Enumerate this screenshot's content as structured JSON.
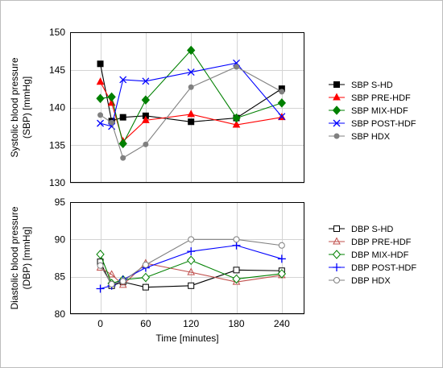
{
  "chart_data": [
    {
      "type": "line",
      "x": [
        0,
        15,
        30,
        60,
        120,
        180,
        240
      ],
      "xlim": [
        -40,
        270
      ],
      "xticks": [
        0,
        60,
        120,
        180,
        240
      ],
      "ylim": [
        130,
        150
      ],
      "yticks": [
        130,
        135,
        140,
        145,
        150
      ],
      "ylabel": "Systolic blood pressure (SBP) [mmHg]",
      "ylabel_lines": [
        "Systolic blood pressure",
        "(SBP) [mmHg]"
      ],
      "grid": true,
      "legend": "right",
      "series": [
        {
          "name": "SBP S-HD",
          "color": "#000000",
          "marker": "filled-square",
          "values": [
            145.8,
            138.2,
            138.7,
            138.9,
            138.1,
            138.6,
            142.5
          ]
        },
        {
          "name": "SBP PRE-HDF",
          "color": "#ff0000",
          "marker": "filled-triangle",
          "values": [
            143.4,
            140.6,
            135.5,
            138.3,
            139.1,
            137.7,
            138.7
          ]
        },
        {
          "name": "SBP MIX-HDF",
          "color": "#008000",
          "marker": "filled-diamond",
          "values": [
            141.2,
            141.4,
            135.2,
            141.0,
            147.6,
            138.6,
            140.6
          ]
        },
        {
          "name": "SBP POST-HDF",
          "color": "#0000ff",
          "marker": "x",
          "values": [
            137.9,
            137.5,
            143.7,
            143.5,
            144.7,
            145.9,
            138.8
          ]
        },
        {
          "name": "SBP HDX",
          "color": "#808080",
          "marker": "filled-circle",
          "values": [
            139.0,
            138.0,
            133.3,
            135.1,
            142.7,
            145.4,
            142.1
          ]
        }
      ]
    },
    {
      "type": "line",
      "x": [
        0,
        15,
        30,
        60,
        120,
        180,
        240
      ],
      "xlim": [
        -40,
        270
      ],
      "xticks": [
        0,
        60,
        120,
        180,
        240
      ],
      "xtick_labels": [
        "0",
        "60",
        "120",
        "180",
        "240"
      ],
      "xlabel": "Time [minutes]",
      "ylim": [
        80,
        95
      ],
      "yticks": [
        80,
        85,
        90,
        95
      ],
      "ylabel": "Diastolic blood pressure (DBP) [mmHg]",
      "ylabel_lines": [
        "Diastolic blood pressure",
        "(DBP) [mmHg]"
      ],
      "grid": true,
      "legend": "right",
      "series": [
        {
          "name": "DBP S-HD",
          "color": "#000000",
          "marker": "open-square",
          "values": [
            87.0,
            83.8,
            84.3,
            83.6,
            83.8,
            85.9,
            85.8
          ]
        },
        {
          "name": "DBP PRE-HDF",
          "color": "#c0504d",
          "marker": "open-triangle",
          "values": [
            86.2,
            85.3,
            83.9,
            86.8,
            85.6,
            84.3,
            85.2
          ]
        },
        {
          "name": "DBP MIX-HDF",
          "color": "#008000",
          "marker": "open-diamond",
          "values": [
            88.0,
            84.1,
            84.6,
            84.9,
            87.2,
            84.7,
            85.4
          ]
        },
        {
          "name": "DBP POST-HDF",
          "color": "#0000ff",
          "marker": "plus",
          "values": [
            83.4,
            83.8,
            84.6,
            86.2,
            88.4,
            89.2,
            87.4
          ]
        },
        {
          "name": "DBP HDX",
          "color": "#808080",
          "marker": "open-circle",
          "values": [
            86.5,
            84.0,
            84.4,
            86.6,
            90.0,
            90.0,
            89.2
          ]
        }
      ]
    }
  ]
}
